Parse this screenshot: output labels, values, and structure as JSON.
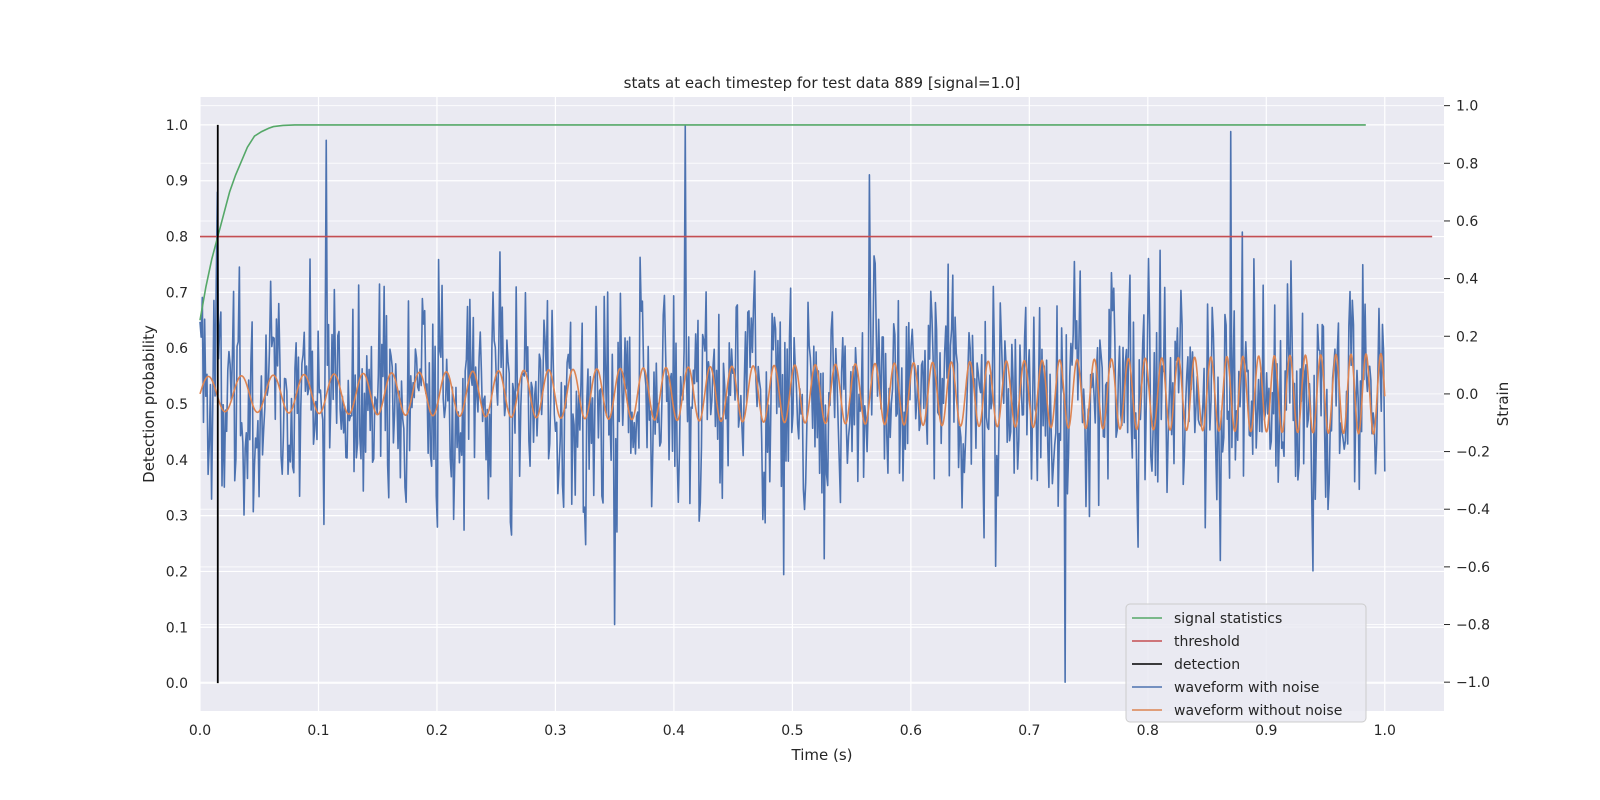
{
  "chart_data": {
    "type": "line",
    "title": "stats at each timestep for test data 889 [signal=1.0]",
    "xlabel": "Time (s)",
    "ylabel": "Detection probability",
    "y2label": "Strain",
    "xlim": [
      0.0,
      1.05
    ],
    "ylim": [
      -0.05,
      1.05
    ],
    "y2lim": [
      -1.1,
      1.03
    ],
    "xticks": [
      "0.0",
      "0.1",
      "0.2",
      "0.3",
      "0.4",
      "0.5",
      "0.6",
      "0.7",
      "0.8",
      "0.9",
      "1.0"
    ],
    "yticks": [
      "0.0",
      "0.1",
      "0.2",
      "0.3",
      "0.4",
      "0.5",
      "0.6",
      "0.7",
      "0.8",
      "0.9",
      "1.0"
    ],
    "y2ticks": [
      "−1.0",
      "−0.8",
      "−0.6",
      "−0.4",
      "−0.2",
      "0.0",
      "0.2",
      "0.4",
      "0.6",
      "0.8",
      "1.0"
    ],
    "grid": true,
    "legend_position": "bottom-right",
    "colors": {
      "background": "#eaeaf2",
      "grid": "#ffffff",
      "signal_statistics": "#55a868",
      "threshold": "#c44e52",
      "detection": "#000000",
      "waveform_with_noise": "#4c72b0",
      "waveform_without_noise": "#dd8452"
    },
    "series": [
      {
        "name": "signal statistics",
        "axis": "left",
        "x": [
          0.0,
          0.005,
          0.01,
          0.015,
          0.02,
          0.025,
          0.03,
          0.035,
          0.04,
          0.046,
          0.052,
          0.058,
          0.062,
          0.07,
          0.08,
          0.09,
          0.1,
          0.15,
          0.2,
          0.3,
          0.4,
          0.5,
          0.6,
          0.7,
          0.8,
          0.9,
          0.984
        ],
        "y": [
          0.65,
          0.71,
          0.76,
          0.8,
          0.84,
          0.88,
          0.91,
          0.935,
          0.96,
          0.98,
          0.988,
          0.994,
          0.997,
          0.999,
          1.0,
          1.0,
          1.0,
          1.0,
          1.0,
          1.0,
          1.0,
          1.0,
          1.0,
          1.0,
          1.0,
          1.0,
          1.0
        ]
      },
      {
        "name": "threshold",
        "axis": "left",
        "x": [
          0.0,
          1.04
        ],
        "y": [
          0.8,
          0.8
        ]
      },
      {
        "name": "detection",
        "axis": "left",
        "x": [
          0.015,
          0.015
        ],
        "y": [
          0.0,
          1.0
        ]
      },
      {
        "name": "waveform with noise",
        "axis": "right",
        "t_start": 0.0,
        "t_end": 1.0,
        "amplitude_range": [
          -1.0,
          1.0
        ],
        "peaks": [
          {
            "x": 0.0,
            "y": 0.25
          },
          {
            "x": 0.015,
            "y": 0.7
          },
          {
            "x": 0.107,
            "y": 0.88
          },
          {
            "x": 0.35,
            "y": -0.8
          },
          {
            "x": 0.41,
            "y": 0.93
          },
          {
            "x": 0.565,
            "y": 0.76
          },
          {
            "x": 0.73,
            "y": -1.0
          },
          {
            "x": 0.87,
            "y": 0.91
          }
        ]
      },
      {
        "name": "waveform without noise",
        "axis": "right",
        "t_start": 0.0,
        "t_end": 1.0,
        "amplitude_start": 0.06,
        "amplitude_end": 0.14,
        "freq_start_hz": 35,
        "freq_end_hz": 80
      }
    ]
  }
}
